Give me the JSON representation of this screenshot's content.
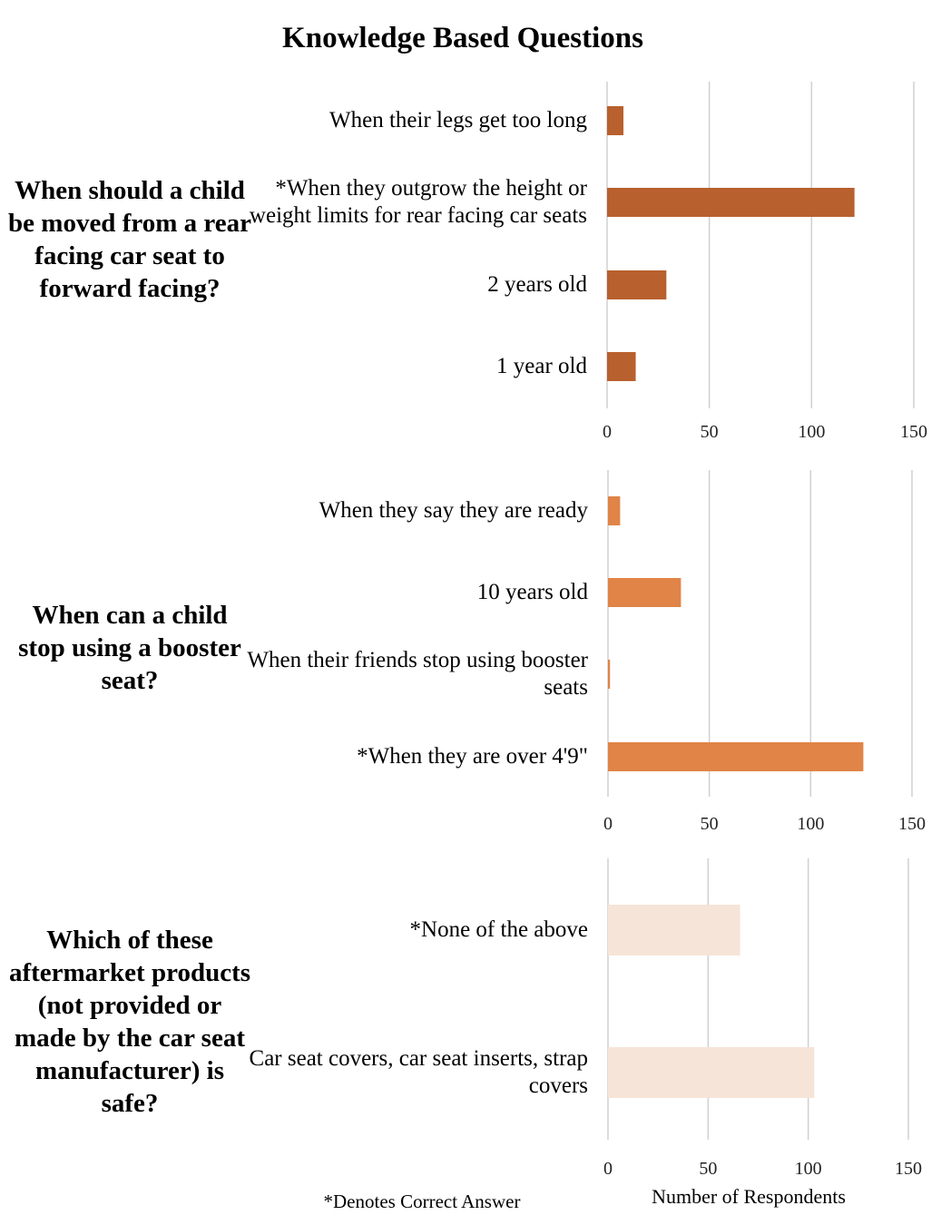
{
  "title": "Knowledge Based Questions",
  "footnote": "*Denotes Correct Answer",
  "x_axis_label": "Number of Respondents",
  "chart_data": [
    {
      "type": "bar",
      "orientation": "horizontal",
      "question": "When should a child be moved from a rear facing car seat to forward facing?",
      "categories": [
        "When their legs get too long",
        "*When they outgrow the height or weight limits for rear facing car seats",
        "2 years old",
        "1 year old"
      ],
      "values": [
        8,
        121,
        29,
        14
      ],
      "xlim": [
        0,
        150
      ],
      "xticks": [
        0,
        50,
        100,
        150
      ],
      "color": "#B8602E",
      "grid": true
    },
    {
      "type": "bar",
      "orientation": "horizontal",
      "question": "When can a child stop using a booster seat?",
      "categories": [
        "When they say they are ready",
        "10 years old",
        "When their friends stop using booster seats",
        "*When they are over 4'9\""
      ],
      "values": [
        6,
        36,
        1,
        126
      ],
      "xlim": [
        0,
        150
      ],
      "xticks": [
        0,
        50,
        100,
        150
      ],
      "color": "#E08447",
      "grid": true
    },
    {
      "type": "bar",
      "orientation": "horizontal",
      "question": "Which of these aftermarket products (not provided or made by the car seat manufacturer) is safe?",
      "categories": [
        "*None of the above",
        "Car seat covers, car seat inserts, strap covers"
      ],
      "values": [
        66,
        103
      ],
      "xlim": [
        0,
        150
      ],
      "xticks": [
        0,
        50,
        100,
        150
      ],
      "color": "#F6E4D8",
      "grid": true
    }
  ]
}
